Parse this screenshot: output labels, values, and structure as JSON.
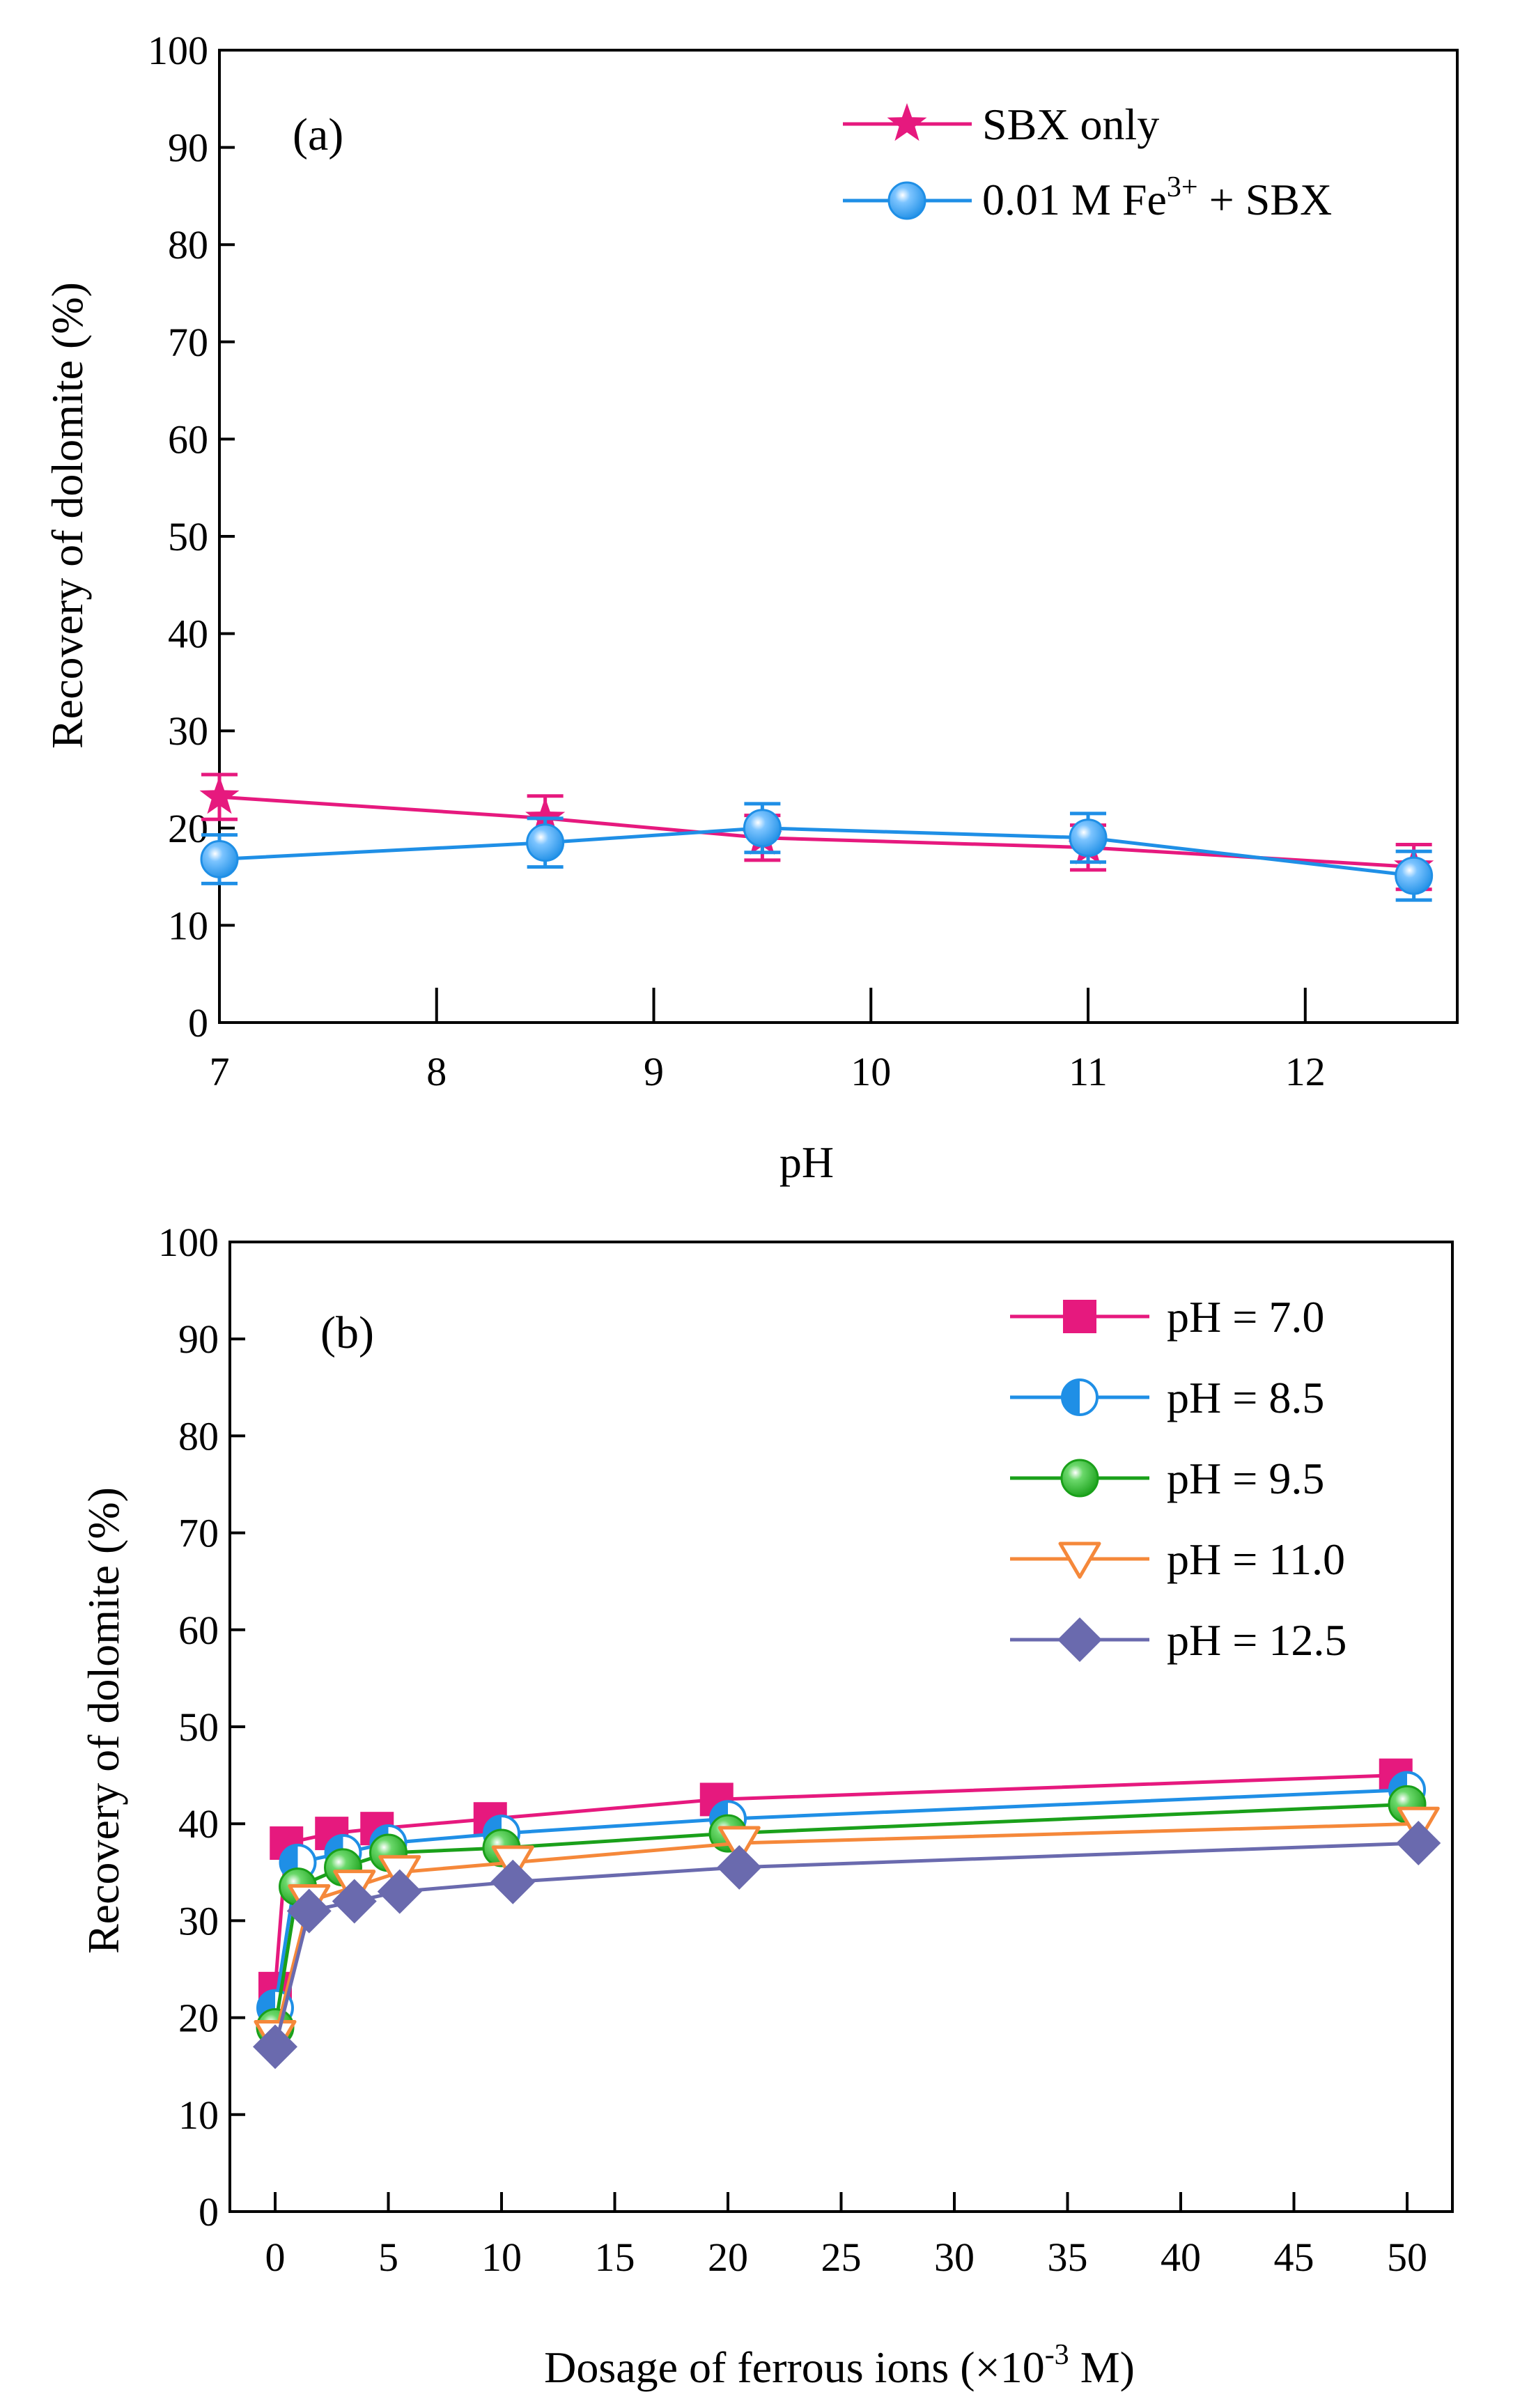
{
  "chart_data": [
    {
      "type": "line",
      "panel_label": "(a)",
      "title": "",
      "xlabel": "pH",
      "ylabel": "Recovery of dolomite (%)",
      "xlim": [
        7.0,
        12.7
      ],
      "ylim": [
        0,
        100
      ],
      "x_ticks": [
        7,
        8,
        9,
        10,
        11,
        12
      ],
      "y_ticks": [
        0,
        10,
        20,
        30,
        40,
        50,
        60,
        70,
        80,
        90,
        100
      ],
      "legend_position": "top-right",
      "series": [
        {
          "name": "SBX only",
          "color": "#e6197e",
          "marker": "star",
          "x": [
            7.0,
            8.5,
            9.5,
            11.0,
            12.5
          ],
          "values": [
            23.2,
            21.0,
            19.0,
            18.0,
            16.0
          ],
          "errors": [
            2.3,
            2.3,
            2.3,
            2.3,
            2.3
          ]
        },
        {
          "name": "0.01 M Fe3+ + SBX",
          "color": "#1f8fe6",
          "marker": "sphere",
          "x": [
            7.0,
            8.5,
            9.5,
            11.0,
            12.5
          ],
          "values": [
            16.8,
            18.5,
            20.0,
            19.0,
            15.1
          ],
          "errors": [
            2.5,
            2.5,
            2.5,
            2.5,
            2.5
          ]
        }
      ]
    },
    {
      "type": "line",
      "panel_label": "(b)",
      "title": "",
      "xlabel": "Dosage of ferrous ions (×10-3 M)",
      "ylabel": "Recovery of dolomite (%)",
      "xlim": [
        -2,
        52
      ],
      "ylim": [
        0,
        100
      ],
      "x_ticks": [
        0,
        5,
        10,
        15,
        20,
        25,
        30,
        35,
        40,
        45,
        50
      ],
      "y_ticks": [
        0,
        10,
        20,
        30,
        40,
        50,
        60,
        70,
        80,
        90,
        100
      ],
      "legend_position": "top-right",
      "series": [
        {
          "name": "pH = 7.0",
          "color": "#e6197e",
          "marker": "square",
          "x": [
            0,
            0.5,
            2.5,
            4.5,
            9.5,
            19.5,
            49.5
          ],
          "values": [
            23.0,
            38.0,
            39.0,
            39.5,
            40.5,
            42.5,
            45.0
          ]
        },
        {
          "name": "pH = 8.5",
          "color": "#1f8fe6",
          "marker": "half-circle",
          "x": [
            0,
            1.0,
            3.0,
            5.0,
            10.0,
            20.0,
            50.0
          ],
          "values": [
            21.0,
            36.0,
            37.0,
            38.0,
            39.0,
            40.5,
            43.5
          ]
        },
        {
          "name": "pH = 9.5",
          "color": "#1aa01a",
          "marker": "sphere",
          "x": [
            0,
            1.0,
            3.0,
            5.0,
            10.0,
            20.0,
            50.0
          ],
          "values": [
            19.0,
            33.5,
            35.5,
            37.0,
            37.5,
            39.0,
            42.0
          ]
        },
        {
          "name": "pH = 11.0",
          "color": "#f5883a",
          "marker": "triangle-down",
          "x": [
            0,
            1.5,
            3.5,
            5.5,
            10.5,
            20.5,
            50.5
          ],
          "values": [
            18.0,
            32.0,
            33.5,
            35.0,
            36.0,
            38.0,
            40.0
          ]
        },
        {
          "name": "pH = 12.5",
          "color": "#6a6aae",
          "marker": "diamond",
          "x": [
            0,
            1.5,
            3.5,
            5.5,
            10.5,
            20.5,
            50.5
          ],
          "values": [
            17.0,
            31.0,
            32.0,
            33.0,
            34.0,
            35.5,
            38.0
          ]
        }
      ]
    }
  ]
}
